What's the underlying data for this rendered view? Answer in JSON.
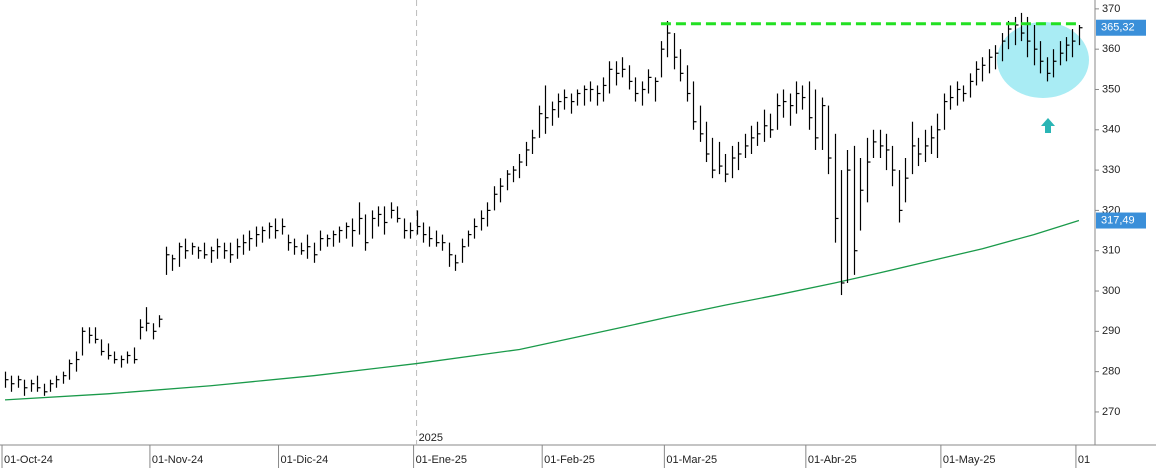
{
  "chart_data": {
    "type": "ohlc",
    "x": [
      0,
      1,
      2,
      3,
      4,
      5,
      6,
      7,
      8,
      9,
      10,
      11,
      12,
      13,
      14,
      15,
      16,
      17,
      18,
      19,
      20,
      21,
      22,
      23,
      24,
      25,
      26,
      27,
      28,
      29,
      30,
      31,
      32,
      33,
      34,
      35,
      36,
      37,
      38,
      39,
      40,
      41,
      42,
      43,
      44,
      45,
      46,
      47,
      48,
      49,
      50,
      51,
      52,
      53,
      54,
      55,
      56,
      57,
      58,
      59,
      60,
      61,
      62,
      63,
      64,
      65,
      66,
      67,
      68,
      69,
      70,
      71,
      72,
      73,
      74,
      75,
      76,
      77,
      78,
      79,
      80,
      81,
      82,
      83,
      84,
      85,
      86,
      87,
      88,
      89,
      90,
      91,
      92,
      93,
      94,
      95,
      96,
      97,
      98,
      99,
      100,
      101,
      102,
      103,
      104,
      105,
      106,
      107,
      108,
      109,
      110,
      111,
      112,
      113,
      114,
      115,
      116,
      117,
      118,
      119,
      120,
      121,
      122,
      123,
      124,
      125,
      126,
      127,
      128,
      129,
      130,
      131,
      132,
      133,
      134,
      135,
      136,
      137,
      138,
      139,
      140,
      141,
      142,
      143,
      144,
      145,
      146,
      147,
      148,
      149,
      150,
      151,
      152,
      153,
      154,
      155,
      156,
      157,
      158,
      159,
      160,
      161,
      162,
      163,
      164,
      165,
      166,
      167
    ],
    "high": [
      280,
      279,
      279,
      278,
      278,
      279,
      277,
      278,
      279,
      280,
      283,
      285,
      291,
      291,
      291,
      288,
      287,
      285,
      284,
      285,
      286,
      293,
      296,
      292,
      294,
      311,
      309,
      312,
      313,
      312,
      311,
      312,
      311,
      313,
      312,
      312,
      313,
      314,
      315,
      316,
      316,
      317,
      318,
      318,
      314,
      313,
      312,
      314,
      312,
      315,
      314,
      315,
      316,
      317,
      318,
      322,
      319,
      320,
      321,
      321,
      322,
      321,
      318,
      317,
      320,
      317,
      316,
      315,
      314,
      312,
      309,
      313,
      315,
      318,
      320,
      322,
      326,
      328,
      330,
      331,
      334,
      337,
      340,
      346,
      351,
      347,
      349,
      350,
      349,
      350,
      351,
      352,
      351,
      353,
      357,
      357,
      358,
      356,
      353,
      352,
      355,
      353,
      362,
      367,
      364,
      360,
      356,
      352,
      346,
      342,
      338,
      337,
      334,
      336,
      337,
      339,
      341,
      342,
      345,
      344,
      349,
      350,
      349,
      352,
      351,
      352,
      350,
      348,
      346,
      339,
      330,
      335,
      336,
      333,
      338,
      340,
      340,
      339,
      336,
      330,
      333,
      342,
      338,
      340,
      341,
      344,
      349,
      351,
      352,
      351,
      354,
      357,
      358,
      360,
      361,
      364,
      367,
      368,
      369,
      368,
      366,
      362,
      358,
      360,
      362,
      363,
      365,
      366
    ],
    "low": [
      276,
      275,
      276,
      274,
      275,
      275,
      274,
      275,
      276,
      277,
      278,
      280,
      284,
      287,
      287,
      284,
      283,
      282,
      281,
      282,
      282,
      288,
      290,
      288,
      291,
      304,
      305,
      306,
      308,
      309,
      308,
      308,
      307,
      308,
      308,
      307,
      308,
      309,
      310,
      311,
      312,
      313,
      313,
      314,
      310,
      309,
      309,
      308,
      307,
      310,
      311,
      311,
      312,
      313,
      311,
      314,
      310,
      313,
      316,
      314,
      318,
      317,
      313,
      313,
      314,
      312,
      311,
      311,
      310,
      306,
      305,
      307,
      311,
      313,
      315,
      316,
      320,
      322,
      325,
      327,
      328,
      331,
      334,
      338,
      339,
      341,
      343,
      345,
      344,
      346,
      346,
      347,
      346,
      347,
      349,
      351,
      353,
      350,
      347,
      346,
      349,
      347,
      353,
      358,
      355,
      352,
      347,
      340,
      337,
      332,
      328,
      329,
      327,
      328,
      330,
      333,
      334,
      336,
      337,
      338,
      340,
      343,
      341,
      344,
      345,
      340,
      335,
      335,
      329,
      312,
      299,
      302,
      304,
      315,
      322,
      333,
      333,
      330,
      326,
      317,
      322,
      329,
      331,
      332,
      334,
      333,
      340,
      345,
      346,
      347,
      348,
      351,
      352,
      354,
      355,
      357,
      360,
      361,
      362,
      358,
      356,
      354,
      352,
      353,
      356,
      357,
      358,
      361
    ],
    "close": [
      278,
      277,
      278,
      276,
      277,
      276,
      275,
      277,
      278,
      279,
      282,
      283,
      290,
      289,
      288,
      285,
      284,
      283,
      283,
      284,
      283,
      291,
      292,
      290,
      293,
      309,
      308,
      311,
      310,
      311,
      310,
      309,
      310,
      311,
      310,
      309,
      311,
      312,
      313,
      314,
      315,
      316,
      315,
      316,
      312,
      311,
      310,
      311,
      309,
      313,
      313,
      314,
      315,
      316,
      315,
      318,
      312,
      318,
      319,
      317,
      320,
      318,
      315,
      315,
      316,
      314,
      313,
      312,
      312,
      309,
      307,
      311,
      314,
      316,
      318,
      320,
      324,
      326,
      329,
      330,
      332,
      335,
      338,
      344,
      343,
      345,
      347,
      348,
      347,
      349,
      350,
      350,
      349,
      351,
      355,
      354,
      355,
      352,
      349,
      350,
      353,
      352,
      360,
      364,
      358,
      354,
      349,
      342,
      339,
      334,
      330,
      331,
      329,
      333,
      334,
      336,
      338,
      339,
      341,
      340,
      346,
      347,
      346,
      349,
      348,
      343,
      338,
      346,
      333,
      318,
      302,
      330,
      310,
      325,
      332,
      337,
      336,
      335,
      330,
      320,
      328,
      336,
      334,
      336,
      338,
      340,
      347,
      348,
      350,
      349,
      352,
      355,
      356,
      358,
      359,
      362,
      365,
      366,
      364,
      362,
      360,
      357,
      354,
      357,
      359,
      361,
      362,
      365.32
    ],
    "color": "#000000",
    "moving_average": {
      "x": [
        0,
        16,
        32,
        48,
        64,
        80,
        96,
        103,
        112,
        120,
        129,
        136,
        144,
        152,
        160,
        167
      ],
      "values": [
        273,
        274.5,
        276.5,
        279,
        282,
        285.5,
        291,
        293.5,
        296.5,
        299,
        302,
        304.5,
        307.5,
        310.5,
        314,
        317.49
      ],
      "color": "#1a9a4a"
    },
    "resistance": {
      "x": [
        102,
        167
      ],
      "value": 366.3,
      "color": "#22e022"
    },
    "price_labels": [
      {
        "value": 365.32,
        "label": "365,32"
      },
      {
        "value": 317.49,
        "label": "317,49"
      }
    ],
    "price_label_color": "#3a8fd9",
    "year_marker": {
      "value": 64,
      "label": "2025"
    },
    "xlim": [
      -0.78,
      169.5
    ],
    "xticks": [
      {
        "value": 0,
        "label": "01-Oct-24"
      },
      {
        "value": 23,
        "label": "01-Nov-24"
      },
      {
        "value": 43,
        "label": "01-Dic-24"
      },
      {
        "value": 64,
        "label": "01-Ene-25"
      },
      {
        "value": 84,
        "label": "01-Feb-25"
      },
      {
        "value": 103,
        "label": "01-Mar-25"
      },
      {
        "value": 125,
        "label": "01-Abr-25"
      },
      {
        "value": 146,
        "label": "01-May-25"
      },
      {
        "value": 167,
        "label": "01"
      }
    ],
    "ylim": [
      261.8,
      372.2
    ],
    "yticks": [
      270,
      280,
      290,
      300,
      310,
      320,
      330,
      340,
      350,
      360,
      370
    ],
    "grid": false
  }
}
